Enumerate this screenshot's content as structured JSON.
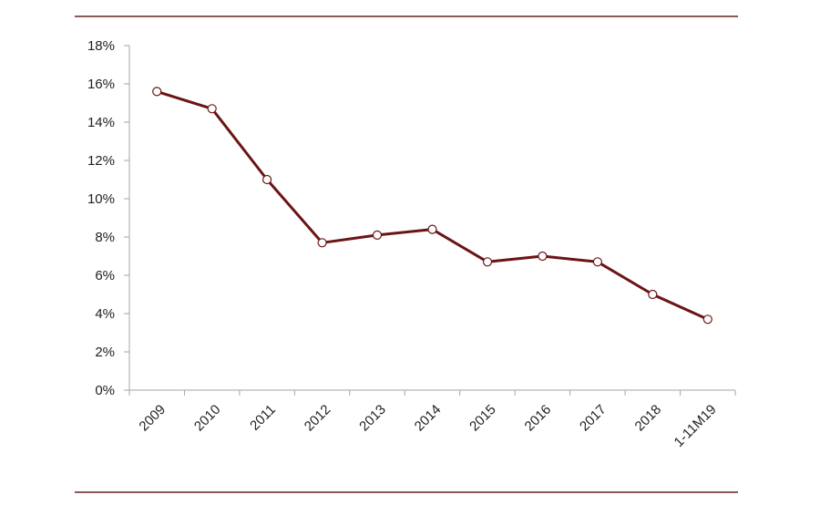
{
  "chart_data": {
    "type": "line",
    "categories": [
      "2009",
      "2010",
      "2011",
      "2012",
      "2013",
      "2014",
      "2015",
      "2016",
      "2017",
      "2018",
      "1-11M19"
    ],
    "series": [
      {
        "values": [
          15.6,
          14.7,
          11.0,
          7.7,
          8.1,
          8.4,
          6.7,
          7.0,
          6.7,
          5.0,
          3.7
        ]
      }
    ],
    "y_ticks": [
      "0%",
      "2%",
      "4%",
      "6%",
      "8%",
      "10%",
      "12%",
      "14%",
      "16%",
      "18%"
    ],
    "ylim": [
      0,
      18
    ],
    "y_unit": "%",
    "grid": false,
    "legend": "none"
  },
  "colors": {
    "line": "#6b1414",
    "marker_fill": "#ffffff",
    "frame_rule": "#8c5a55",
    "axis": "#a6a6a6",
    "text": "#222222"
  }
}
